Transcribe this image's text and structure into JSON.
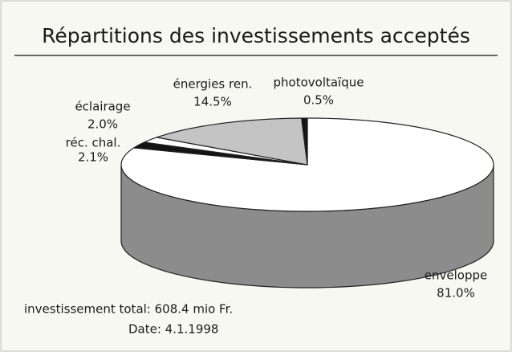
{
  "chart_data": {
    "type": "pie",
    "title": "Répartitions des investissements acceptés",
    "categories": [
      "enveloppe",
      "réc. chal.",
      "éclairage",
      "énergies ren.",
      "photovoltaïque"
    ],
    "values": [
      81.0,
      2.1,
      2.0,
      14.5,
      0.5
    ],
    "value_labels": [
      "81.0%",
      "2.1%",
      "2.0%",
      "14.5%",
      "0.5%"
    ],
    "colors": [
      "#ffffff",
      "#141414",
      "#ffffff",
      "#c4c4c4",
      "#141414"
    ],
    "annotations": [
      "investissement total: 608.4 mio Fr.",
      "Date: 4.1.1998"
    ]
  }
}
